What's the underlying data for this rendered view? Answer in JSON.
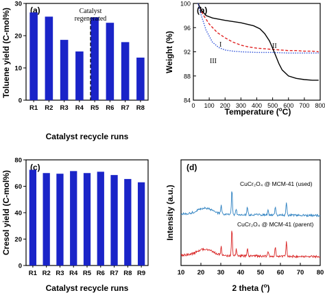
{
  "colors": {
    "bar": "#1a24c8",
    "curve_I": "#e02020",
    "curve_II": "#000000",
    "curve_III": "#2b4fd8",
    "xrd_used": "#2a7fc0",
    "xrd_parent": "#d82020"
  },
  "chart_data": [
    {
      "id": "a",
      "type": "bar",
      "panel_label": "(a)",
      "categories": [
        "R1",
        "R2",
        "R3",
        "R4",
        "R5",
        "R6",
        "R7",
        "R8"
      ],
      "values": [
        27.2,
        25.9,
        18.7,
        15.1,
        25.7,
        24.0,
        18.0,
        13.2
      ],
      "ylabel": "Toluene yield (C-mol%)",
      "xlabel": "Catalyst recycle runs",
      "ylim": [
        0,
        30
      ],
      "yticks": [
        "0",
        "10",
        "20",
        "30"
      ],
      "divider_after": "R4",
      "annotation": "Catalyst\nregenerated"
    },
    {
      "id": "b",
      "type": "line",
      "panel_label": "(b)",
      "xlabel": "Temperature (°C)",
      "ylabel": "Weight (%)",
      "xlim": [
        0,
        800
      ],
      "ylim": [
        84,
        100
      ],
      "xticks": [
        "0",
        "100",
        "200",
        "300",
        "400",
        "500",
        "600",
        "700",
        "800"
      ],
      "yticks": [
        "84",
        "88",
        "92",
        "96",
        "100"
      ],
      "series": [
        {
          "name": "I",
          "style": "dashed",
          "x": [
            30,
            60,
            100,
            150,
            200,
            250,
            300,
            350,
            400,
            450,
            500,
            550,
            600,
            650,
            700,
            750,
            790
          ],
          "y": [
            100,
            98.2,
            96.6,
            95.2,
            94.3,
            93.6,
            93.1,
            92.8,
            92.6,
            92.5,
            92.4,
            92.3,
            92.2,
            92.2,
            92.1,
            92.1,
            92.0
          ]
        },
        {
          "name": "II",
          "style": "solid",
          "x": [
            30,
            50,
            80,
            120,
            200,
            300,
            380,
            420,
            450,
            480,
            500,
            520,
            540,
            560,
            600,
            650,
            700,
            750,
            790
          ],
          "y": [
            100,
            98.9,
            98.0,
            97.6,
            97.2,
            96.8,
            96.3,
            95.8,
            95.0,
            93.8,
            92.6,
            91.3,
            90.0,
            89.0,
            88.0,
            87.6,
            87.4,
            87.3,
            87.3
          ]
        },
        {
          "name": "III",
          "style": "dotted",
          "x": [
            30,
            50,
            80,
            120,
            160,
            200,
            250,
            300,
            400,
            500,
            600,
            700,
            790
          ],
          "y": [
            100,
            98.0,
            95.6,
            93.6,
            92.7,
            92.3,
            92.1,
            92.0,
            91.9,
            91.9,
            91.8,
            91.8,
            91.8
          ]
        }
      ],
      "curve_labels": [
        "I",
        "II",
        "III"
      ]
    },
    {
      "id": "c",
      "type": "bar",
      "panel_label": "(c)",
      "categories": [
        "R1",
        "R2",
        "R3",
        "R4",
        "R5",
        "R6",
        "R7",
        "R8",
        "R9"
      ],
      "values": [
        72.5,
        70.0,
        69.5,
        71.5,
        70.0,
        71.0,
        68.5,
        65.5,
        63.0
      ],
      "ylabel": "Cresol yield (C-mol%)",
      "xlabel": "Catalyst recycle runs",
      "ylim": [
        0,
        80
      ],
      "yticks": [
        "0",
        "20",
        "40",
        "60",
        "80"
      ]
    },
    {
      "id": "d",
      "type": "line",
      "panel_label": "(d)",
      "xlabel": "2 theta (°)",
      "ylabel": "Intensity (a.u.)",
      "xlim": [
        10,
        80
      ],
      "xticks": [
        "10",
        "20",
        "30",
        "40",
        "50",
        "60",
        "70",
        "80"
      ],
      "series_labels": {
        "used": "CuCr₂O₄ @ MCM-41 (used)",
        "parent": "CuCr₂O₄ @ MCM-41 (parent)"
      },
      "peaks_2theta": [
        30.2,
        35.6,
        37.8,
        43.4,
        53.8,
        57.4,
        63.0
      ]
    }
  ]
}
